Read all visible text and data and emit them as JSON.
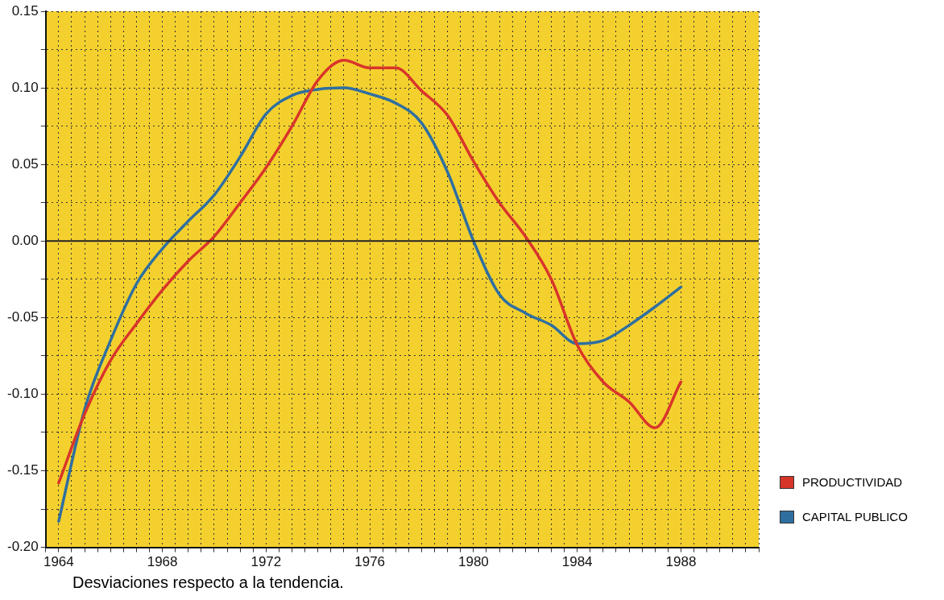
{
  "chart_data": {
    "type": "line",
    "x": [
      1964,
      1965,
      1966,
      1967,
      1968,
      1969,
      1970,
      1971,
      1972,
      1973,
      1974,
      1975,
      1976,
      1977,
      1978,
      1979,
      1980,
      1981,
      1982,
      1983,
      1984,
      1985,
      1986,
      1987,
      1988
    ],
    "series": [
      {
        "name": "PRODUCTIVIDAD",
        "color": "#d8352a",
        "values": [
          -0.158,
          -0.113,
          -0.078,
          -0.054,
          -0.032,
          -0.013,
          0.003,
          0.025,
          0.048,
          0.075,
          0.105,
          0.118,
          0.113,
          0.113,
          0.098,
          0.082,
          0.052,
          0.025,
          0.003,
          -0.025,
          -0.068,
          -0.092,
          -0.105,
          -0.122,
          -0.092
        ]
      },
      {
        "name": "CAPITAL PUBLICO",
        "color": "#2f6fa0",
        "values": [
          -0.183,
          -0.11,
          -0.065,
          -0.028,
          -0.005,
          0.013,
          0.03,
          0.055,
          0.083,
          0.095,
          0.099,
          0.1,
          0.096,
          0.09,
          0.077,
          0.045,
          0.0,
          -0.035,
          -0.047,
          -0.055,
          -0.067,
          -0.065,
          -0.055,
          -0.043,
          -0.03
        ]
      }
    ],
    "xlim": [
      1963.5,
      1991
    ],
    "xticks": [
      {
        "value": 1963.5,
        "label": null
      },
      {
        "value": 1964,
        "label": "1964"
      },
      {
        "value": 1964.5,
        "label": null
      },
      {
        "value": 1965,
        "label": null
      },
      {
        "value": 1965.5,
        "label": null
      },
      {
        "value": 1966,
        "label": null
      },
      {
        "value": 1966.5,
        "label": null
      },
      {
        "value": 1967,
        "label": null
      },
      {
        "value": 1967.5,
        "label": null
      },
      {
        "value": 1968,
        "label": "1968"
      },
      {
        "value": 1968.5,
        "label": null
      },
      {
        "value": 1969,
        "label": null
      },
      {
        "value": 1969.5,
        "label": null
      },
      {
        "value": 1970,
        "label": null
      },
      {
        "value": 1970.5,
        "label": null
      },
      {
        "value": 1971,
        "label": null
      },
      {
        "value": 1971.5,
        "label": null
      },
      {
        "value": 1972,
        "label": "1972"
      },
      {
        "value": 1972.5,
        "label": null
      },
      {
        "value": 1973,
        "label": null
      },
      {
        "value": 1973.5,
        "label": null
      },
      {
        "value": 1974,
        "label": null
      },
      {
        "value": 1974.5,
        "label": null
      },
      {
        "value": 1975,
        "label": null
      },
      {
        "value": 1975.5,
        "label": null
      },
      {
        "value": 1976,
        "label": "1976"
      },
      {
        "value": 1976.5,
        "label": null
      },
      {
        "value": 1977,
        "label": null
      },
      {
        "value": 1977.5,
        "label": null
      },
      {
        "value": 1978,
        "label": null
      },
      {
        "value": 1978.5,
        "label": null
      },
      {
        "value": 1979,
        "label": null
      },
      {
        "value": 1979.5,
        "label": null
      },
      {
        "value": 1980,
        "label": "1980"
      },
      {
        "value": 1980.5,
        "label": null
      },
      {
        "value": 1981,
        "label": null
      },
      {
        "value": 1981.5,
        "label": null
      },
      {
        "value": 1982,
        "label": null
      },
      {
        "value": 1982.5,
        "label": null
      },
      {
        "value": 1983,
        "label": null
      },
      {
        "value": 1983.5,
        "label": null
      },
      {
        "value": 1984,
        "label": "1984"
      },
      {
        "value": 1984.5,
        "label": null
      },
      {
        "value": 1985,
        "label": null
      },
      {
        "value": 1985.5,
        "label": null
      },
      {
        "value": 1986,
        "label": null
      },
      {
        "value": 1986.5,
        "label": null
      },
      {
        "value": 1987,
        "label": null
      },
      {
        "value": 1987.5,
        "label": null
      },
      {
        "value": 1988,
        "label": "1988"
      },
      {
        "value": 1988.5,
        "label": null
      },
      {
        "value": 1989,
        "label": null
      },
      {
        "value": 1989.5,
        "label": null
      },
      {
        "value": 1990,
        "label": null
      },
      {
        "value": 1990.5,
        "label": null
      },
      {
        "value": 1991,
        "label": null
      }
    ],
    "ylim": [
      -0.2,
      0.15
    ],
    "yticks": [
      {
        "value": -0.2,
        "label": "-0.20"
      },
      {
        "value": -0.175,
        "label": null
      },
      {
        "value": -0.15,
        "label": "-0.15"
      },
      {
        "value": -0.125,
        "label": null
      },
      {
        "value": -0.1,
        "label": "-0.10"
      },
      {
        "value": -0.075,
        "label": null
      },
      {
        "value": -0.05,
        "label": "-0.05"
      },
      {
        "value": -0.025,
        "label": null
      },
      {
        "value": 0,
        "label": "0.00"
      },
      {
        "value": 0.025,
        "label": null
      },
      {
        "value": 0.05,
        "label": "0.05"
      },
      {
        "value": 0.075,
        "label": null
      },
      {
        "value": 0.1,
        "label": "0.10"
      },
      {
        "value": 0.125,
        "label": null
      },
      {
        "value": 0.15,
        "label": "0.15"
      }
    ],
    "ref_lines": [
      {
        "axis": "y",
        "value": 0,
        "color": "#222222"
      }
    ],
    "grid": true,
    "legend": "bottom right",
    "marker": "none",
    "line_style": "solid",
    "annotations": [
      "Desviaciones respecto a la tendencia."
    ]
  }
}
